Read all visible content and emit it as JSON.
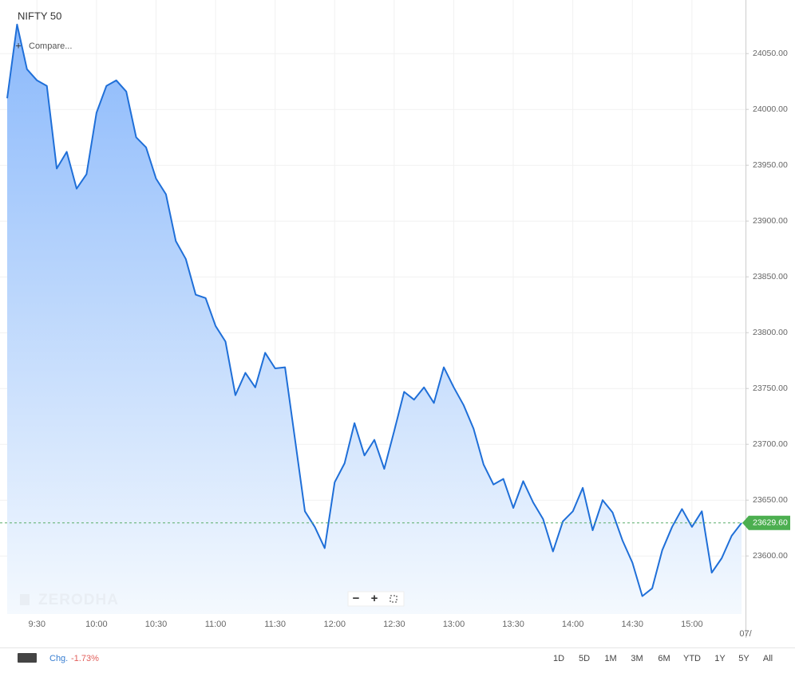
{
  "chart_data": {
    "type": "area",
    "title": "NIFTY 50",
    "color": "#1f6fd8",
    "x": [
      555,
      560,
      565,
      570,
      575,
      580,
      585,
      590,
      595,
      600,
      605,
      610,
      615,
      620,
      625,
      630,
      635,
      640,
      645,
      650,
      655,
      660,
      665,
      670,
      675,
      680,
      685,
      690,
      695,
      700,
      705,
      710,
      715,
      720,
      725,
      730,
      735,
      740,
      745,
      750,
      755,
      760,
      765,
      770,
      775,
      780,
      785,
      790,
      795,
      800,
      805,
      810,
      815,
      820,
      825,
      830,
      835,
      840,
      845,
      850,
      855,
      860,
      865,
      870,
      875,
      880,
      885,
      890,
      895,
      900,
      905,
      910,
      915,
      920,
      925
    ],
    "values": [
      24010,
      24076,
      24036,
      24026,
      24021,
      23947,
      23962,
      23929,
      23942,
      23997,
      24021,
      24026,
      24016,
      23975,
      23966,
      23938,
      23924,
      23882,
      23866,
      23834,
      23831,
      23806,
      23792,
      23744,
      23764,
      23751,
      23782,
      23768,
      23769,
      23705,
      23640,
      23626,
      23607,
      23666,
      23683,
      23719,
      23690,
      23704,
      23678,
      23712,
      23747,
      23740,
      23751,
      23737,
      23769,
      23751,
      23735,
      23714,
      23682,
      23664,
      23669,
      23643,
      23667,
      23648,
      23633,
      23604,
      23631,
      23640,
      23661,
      23623,
      23650,
      23639,
      23614,
      23594,
      23564,
      23571,
      23605,
      23626,
      23642,
      23626,
      23640,
      23585,
      23598,
      23618,
      23629.6
    ],
    "xlim": [
      553,
      927
    ],
    "ylim": [
      23548,
      24098
    ],
    "xticks": [
      {
        "value": 570,
        "label": "9:30"
      },
      {
        "value": 600,
        "label": "10:00"
      },
      {
        "value": 630,
        "label": "10:30"
      },
      {
        "value": 660,
        "label": "11:00"
      },
      {
        "value": 690,
        "label": "11:30"
      },
      {
        "value": 720,
        "label": "12:00"
      },
      {
        "value": 750,
        "label": "12:30"
      },
      {
        "value": 780,
        "label": "13:00"
      },
      {
        "value": 810,
        "label": "13:30"
      },
      {
        "value": 840,
        "label": "14:00"
      },
      {
        "value": 870,
        "label": "14:30"
      },
      {
        "value": 900,
        "label": "15:00"
      }
    ],
    "yticks": [
      {
        "value": 23600,
        "label": "23600.00"
      },
      {
        "value": 23650,
        "label": "23650.00"
      },
      {
        "value": 23700,
        "label": "23700.00"
      },
      {
        "value": 23750,
        "label": "23750.00"
      },
      {
        "value": 23800,
        "label": "23800.00"
      },
      {
        "value": 23850,
        "label": "23850.00"
      },
      {
        "value": 23900,
        "label": "23900.00"
      },
      {
        "value": 23950,
        "label": "23950.00"
      },
      {
        "value": 24000,
        "label": "24000.00"
      },
      {
        "value": 24050,
        "label": "24050.00"
      }
    ],
    "last_price": {
      "value": 23629.6,
      "label": "23629.60"
    },
    "date_label": "07/",
    "grid": true
  },
  "ui": {
    "compare": "Compare...",
    "watermark": "ZERODHA",
    "chg_label": "Chg.",
    "chg_value": "-1.73%",
    "ranges": [
      "1D",
      "5D",
      "1M",
      "3M",
      "6M",
      "YTD",
      "1Y",
      "5Y",
      "All"
    ]
  }
}
